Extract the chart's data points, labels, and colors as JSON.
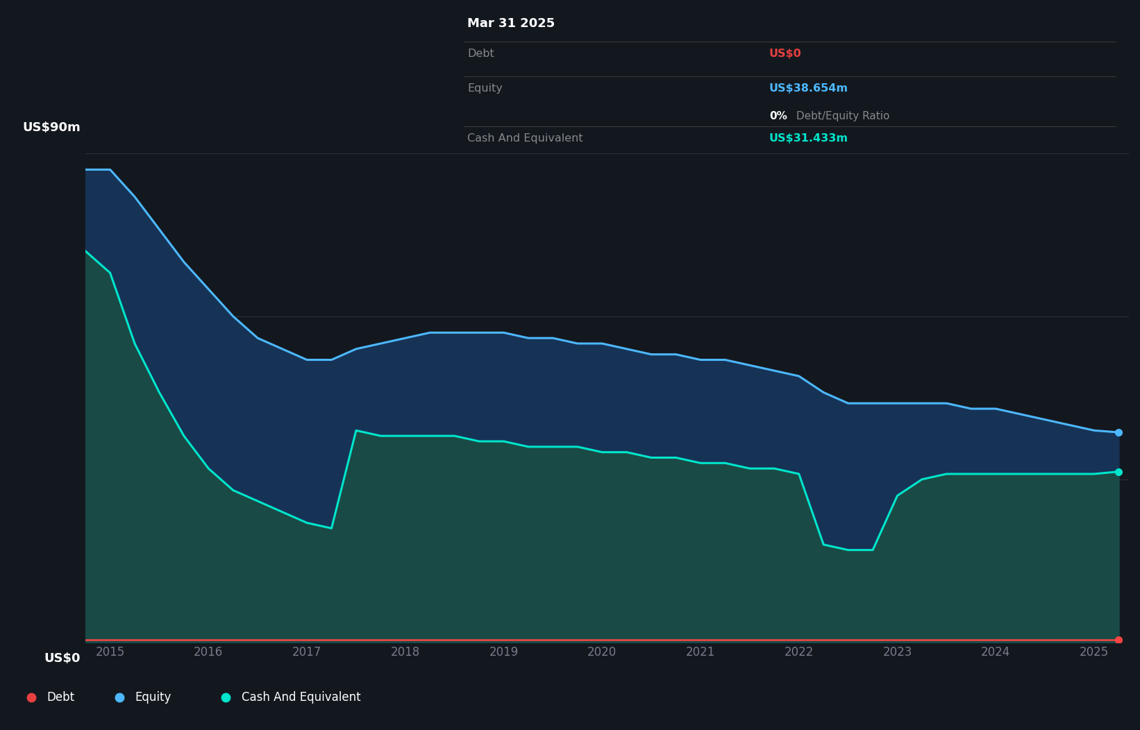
{
  "background_color": "#13181f",
  "plot_bg_color": "#13181f",
  "grid_color": "#2a3040",
  "equity_line_color": "#4db8ff",
  "cash_line_color": "#00e5cc",
  "debt_line_color": "#ff4444",
  "equity_fill_color": "#163356",
  "cash_fill_color": "#1a4a45",
  "ylim": [
    0,
    90
  ],
  "ylabel_top": "US$90m",
  "ylabel_bot": "US$0",
  "tooltip": {
    "date": "Mar 31 2025",
    "debt_label": "Debt",
    "debt_value": "US$0",
    "debt_color": "#e84040",
    "equity_label": "Equity",
    "equity_value": "US$38.654m",
    "equity_color": "#4db8ff",
    "ratio_bold": "0%",
    "ratio_rest": " Debt/Equity Ratio",
    "cash_label": "Cash And Equivalent",
    "cash_value": "US$31.433m",
    "cash_color": "#00e5cc",
    "bg_color": "#000000",
    "sep_color": "#3a3a3a",
    "label_color": "#888888",
    "white_color": "#ffffff"
  },
  "legend": [
    {
      "label": "Debt",
      "color": "#e84040"
    },
    {
      "label": "Equity",
      "color": "#4db8ff"
    },
    {
      "label": "Cash And Equivalent",
      "color": "#00e5cc"
    }
  ],
  "x": [
    2014.75,
    2015.0,
    2015.25,
    2015.5,
    2015.75,
    2016.0,
    2016.25,
    2016.5,
    2016.75,
    2017.0,
    2017.25,
    2017.5,
    2017.75,
    2018.0,
    2018.25,
    2018.5,
    2018.75,
    2019.0,
    2019.25,
    2019.5,
    2019.75,
    2020.0,
    2020.25,
    2020.5,
    2020.75,
    2021.0,
    2021.25,
    2021.5,
    2021.75,
    2022.0,
    2022.25,
    2022.5,
    2022.75,
    2023.0,
    2023.25,
    2023.5,
    2023.75,
    2024.0,
    2024.25,
    2024.5,
    2024.75,
    2025.0,
    2025.25
  ],
  "equity": [
    87,
    87,
    82,
    76,
    70,
    65,
    60,
    56,
    54,
    52,
    52,
    54,
    55,
    56,
    57,
    57,
    57,
    57,
    56,
    56,
    55,
    55,
    54,
    53,
    53,
    52,
    52,
    51,
    50,
    49,
    46,
    44,
    44,
    44,
    44,
    44,
    43,
    43,
    42,
    41,
    40,
    39,
    38.654
  ],
  "cash": [
    72,
    68,
    55,
    46,
    38,
    32,
    28,
    26,
    24,
    22,
    21,
    39,
    38,
    38,
    38,
    38,
    37,
    37,
    36,
    36,
    36,
    35,
    35,
    34,
    34,
    33,
    33,
    32,
    32,
    31,
    18,
    17,
    17,
    27,
    30,
    31,
    31,
    31,
    31,
    31,
    31,
    31,
    31.433
  ],
  "debt": [
    0.5,
    0.5,
    0.5,
    0.5,
    0.5,
    0.5,
    0.5,
    0.5,
    0.5,
    0.5,
    0.5,
    0.5,
    0.5,
    0.5,
    0.5,
    0.5,
    0.5,
    0.5,
    0.5,
    0.5,
    0.5,
    0.5,
    0.5,
    0.5,
    0.5,
    0.5,
    0.5,
    0.5,
    0.5,
    0.5,
    0.5,
    0.5,
    0.5,
    0.5,
    0.5,
    0.5,
    0.5,
    0.5,
    0.5,
    0.5,
    0.5,
    0.5,
    0.5
  ]
}
